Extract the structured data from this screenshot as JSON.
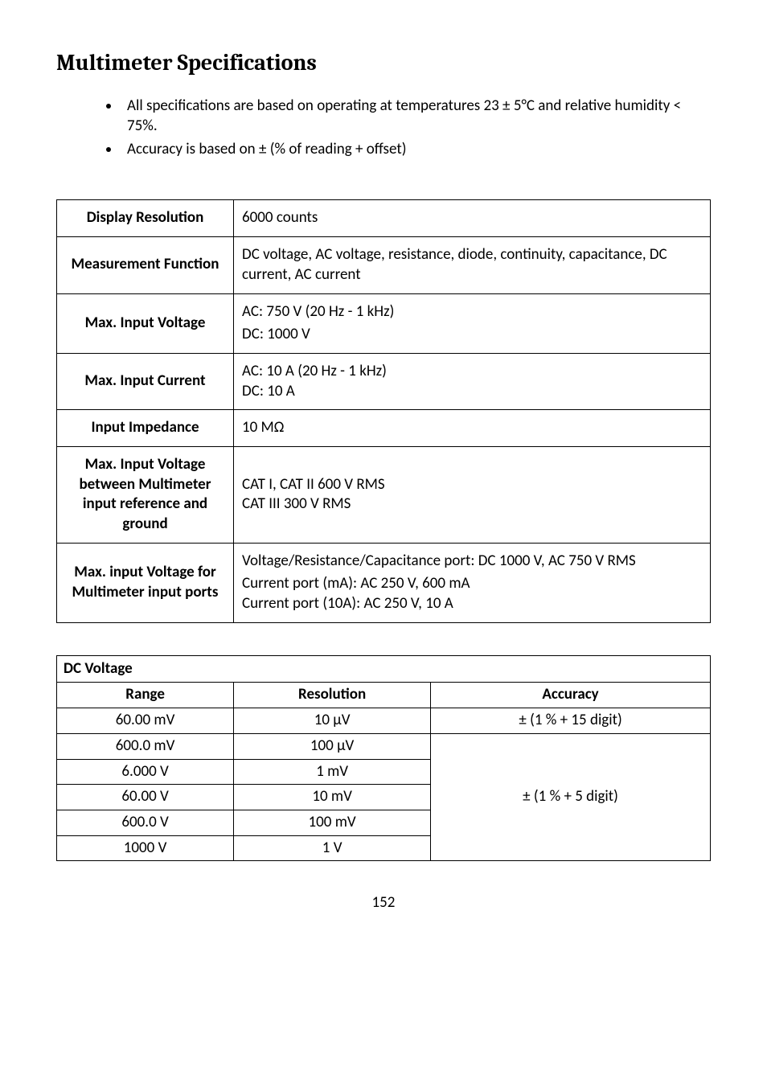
{
  "title": "Multimeter Specifications",
  "notes": [
    "All specifications are based on operating at temperatures 23 ± 5°C and relative humidity < 75%.",
    "Accuracy is based on ± (% of reading + offset)"
  ],
  "specs": [
    {
      "label": "Display Resolution",
      "value": "6000 counts"
    },
    {
      "label": "Measurement Function",
      "value": "DC voltage, AC voltage, resistance, diode, continuity, capacitance, DC current, AC current"
    },
    {
      "label": "Max. Input Voltage",
      "lines": [
        "AC: 750 V (20 Hz - 1 kHz)",
        "DC: 1000 V"
      ]
    },
    {
      "label": "Max. Input Current",
      "lines": [
        "AC: 10 A (20 Hz - 1 kHz)",
        "DC: 10 A"
      ]
    },
    {
      "label": "Input Impedance",
      "value": "10 MΩ"
    },
    {
      "label": "Max. Input Voltage between Multimeter input reference and ground",
      "lines": [
        "CAT I, CAT II 600 V RMS",
        "CAT III 300 V RMS"
      ]
    },
    {
      "label": "Max. input Voltage for Multimeter input ports",
      "lines": [
        "Voltage/Resistance/Capacitance port: DC 1000 V, AC 750 V RMS",
        "Current port (mA): AC 250 V, 600 mA",
        "Current port (10A): AC 250 V, 10 A"
      ]
    }
  ],
  "dc_voltage": {
    "section_title": "DC Voltage",
    "headers": {
      "range": "Range",
      "resolution": "Resolution",
      "accuracy": "Accuracy"
    },
    "rows": [
      {
        "range": "60.00 mV",
        "resolution": "10 µV",
        "accuracy": "± (1 % + 15 digit)"
      },
      {
        "range": "600.0 mV",
        "resolution": "100 µV"
      },
      {
        "range": "6.000 V",
        "resolution": "1 mV"
      },
      {
        "range": "60.00 V",
        "resolution": "10 mV"
      },
      {
        "range": "600.0 V",
        "resolution": "100 mV"
      },
      {
        "range": "1000 V",
        "resolution": "1 V"
      }
    ],
    "accuracy_group": "± (1 % + 5 digit)"
  },
  "page_number": "152"
}
